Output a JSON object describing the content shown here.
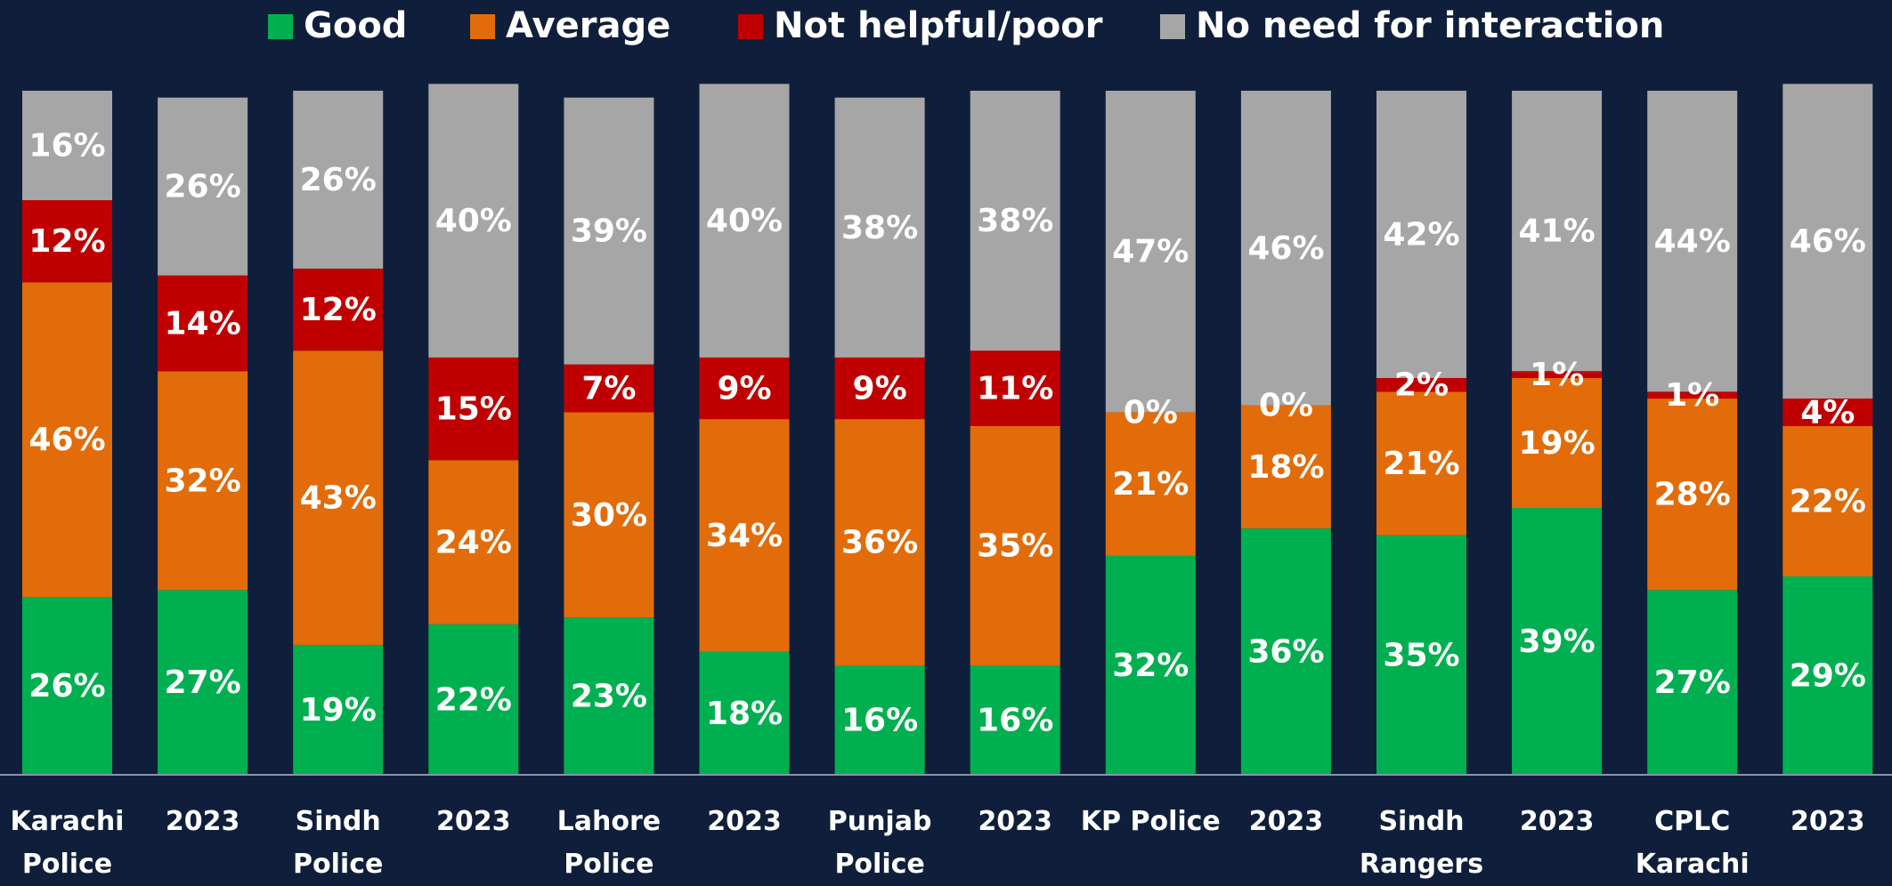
{
  "chart_data": {
    "type": "stacked_bar",
    "categories": [
      "Karachi Police",
      "2023",
      "Sindh Police",
      "2023",
      "Lahore Police",
      "2023",
      "Punjab Police",
      "2023",
      "KP Police",
      "2023",
      "Sindh Rangers",
      "2023",
      "CPLC Karachi",
      "2023"
    ],
    "ylim": [
      0,
      100
    ],
    "series": [
      {
        "name": "Good",
        "color": "#00b050",
        "values": [
          26,
          27,
          19,
          22,
          23,
          18,
          16,
          16,
          32,
          36,
          35,
          39,
          27,
          29
        ],
        "value_labels": [
          "26%",
          "27%",
          "19%",
          "22%",
          "23%",
          "18%",
          "16%",
          "16%",
          "32%",
          "36%",
          "35%",
          "39%",
          "27%",
          "29%"
        ]
      },
      {
        "name": "Average",
        "color": "#e36c0a",
        "values": [
          46,
          32,
          43,
          24,
          30,
          34,
          36,
          35,
          21,
          18,
          21,
          19,
          28,
          22
        ],
        "value_labels": [
          "46%",
          "32%",
          "43%",
          "24%",
          "30%",
          "34%",
          "36%",
          "35%",
          "21%",
          "18%",
          "21%",
          "19%",
          "28%",
          "22%"
        ]
      },
      {
        "name": "Not helpful/poor",
        "color": "#c00000",
        "values": [
          12,
          14,
          12,
          15,
          7,
          9,
          9,
          11,
          0,
          0,
          2,
          1,
          1,
          4
        ],
        "value_labels": [
          "12%",
          "14%",
          "12%",
          "15%",
          "7%",
          "9%",
          "9%",
          "11%",
          "0%",
          "0%",
          "2%",
          "1%",
          "1%",
          "4%"
        ]
      },
      {
        "name": "No need for interaction",
        "color": "#a6a6a6",
        "values": [
          16,
          26,
          26,
          40,
          39,
          40,
          38,
          38,
          47,
          46,
          42,
          41,
          44,
          46
        ],
        "value_labels": [
          "16%",
          "26%",
          "26%",
          "40%",
          "39%",
          "40%",
          "38%",
          "38%",
          "47%",
          "46%",
          "42%",
          "41%",
          "44%",
          "46%"
        ]
      }
    ]
  }
}
